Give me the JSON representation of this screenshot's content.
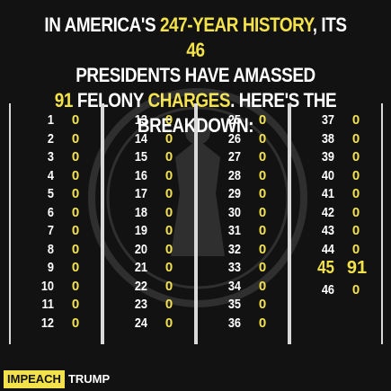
{
  "headline": {
    "line1_a": "IN AMERICA'S ",
    "line1_b": "247-YEAR HISTORY",
    "line1_c": ", ITS ",
    "line1_d": "46",
    "line2": "PRESIDENTS HAVE AMASSED",
    "line3_a": "91",
    "line3_b": " FELONY ",
    "line3_c": "CHARGES",
    "line3_d": ". HERE'S THE BREAKDOWN:"
  },
  "colors": {
    "accent": "#f3e24a",
    "background": "#121212",
    "text": "#ffffff"
  },
  "columns": [
    [
      {
        "president": "1",
        "charges": "0"
      },
      {
        "president": "2",
        "charges": "0"
      },
      {
        "president": "3",
        "charges": "0"
      },
      {
        "president": "4",
        "charges": "0"
      },
      {
        "president": "5",
        "charges": "0"
      },
      {
        "president": "6",
        "charges": "0"
      },
      {
        "president": "7",
        "charges": "0"
      },
      {
        "president": "8",
        "charges": "0"
      },
      {
        "president": "9",
        "charges": "0"
      },
      {
        "president": "10",
        "charges": "0"
      },
      {
        "president": "11",
        "charges": "0"
      },
      {
        "president": "12",
        "charges": "0"
      }
    ],
    [
      {
        "president": "13",
        "charges": "0"
      },
      {
        "president": "14",
        "charges": "0"
      },
      {
        "president": "15",
        "charges": "0"
      },
      {
        "president": "16",
        "charges": "0"
      },
      {
        "president": "17",
        "charges": "0"
      },
      {
        "president": "18",
        "charges": "0"
      },
      {
        "president": "19",
        "charges": "0"
      },
      {
        "president": "20",
        "charges": "0"
      },
      {
        "president": "21",
        "charges": "0"
      },
      {
        "president": "22",
        "charges": "0"
      },
      {
        "president": "23",
        "charges": "0"
      },
      {
        "president": "24",
        "charges": "0"
      }
    ],
    [
      {
        "president": "25",
        "charges": "0"
      },
      {
        "president": "26",
        "charges": "0"
      },
      {
        "president": "27",
        "charges": "0"
      },
      {
        "president": "28",
        "charges": "0"
      },
      {
        "president": "29",
        "charges": "0"
      },
      {
        "president": "30",
        "charges": "0"
      },
      {
        "president": "31",
        "charges": "0"
      },
      {
        "president": "32",
        "charges": "0"
      },
      {
        "president": "33",
        "charges": "0"
      },
      {
        "president": "34",
        "charges": "0"
      },
      {
        "president": "35",
        "charges": "0"
      },
      {
        "president": "36",
        "charges": "0"
      }
    ],
    [
      {
        "president": "37",
        "charges": "0"
      },
      {
        "president": "38",
        "charges": "0"
      },
      {
        "president": "39",
        "charges": "0"
      },
      {
        "president": "40",
        "charges": "0"
      },
      {
        "president": "41",
        "charges": "0"
      },
      {
        "president": "42",
        "charges": "0"
      },
      {
        "president": "43",
        "charges": "0"
      },
      {
        "president": "44",
        "charges": "0"
      },
      {
        "president": "45",
        "charges": "91",
        "highlight": true
      },
      {
        "president": "46",
        "charges": "0"
      }
    ]
  ],
  "footer": {
    "badge": "IMPEACH",
    "rest": "TRUMP"
  }
}
